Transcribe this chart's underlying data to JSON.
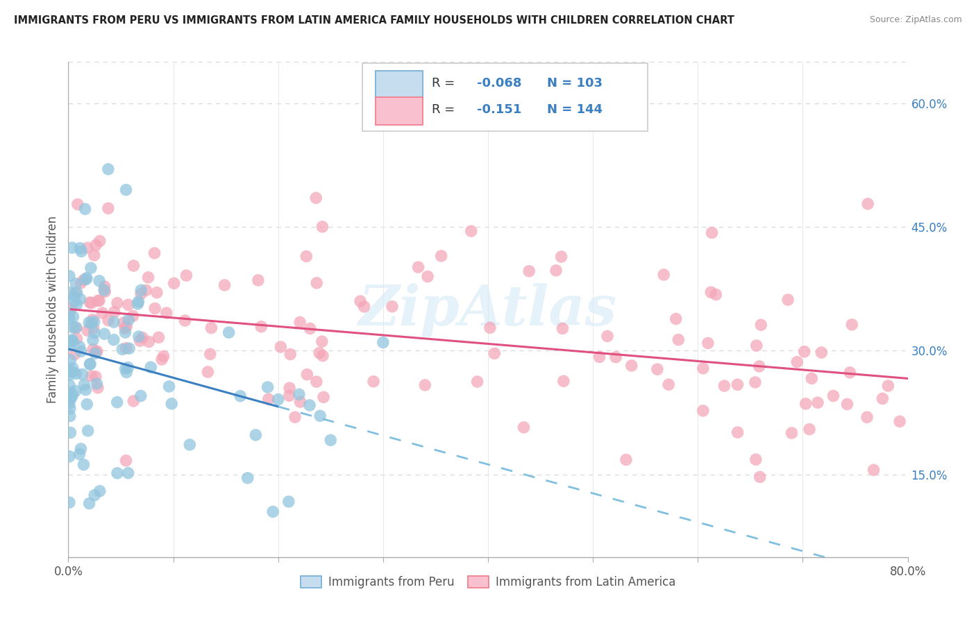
{
  "title": "IMMIGRANTS FROM PERU VS IMMIGRANTS FROM LATIN AMERICA FAMILY HOUSEHOLDS WITH CHILDREN CORRELATION CHART",
  "source": "Source: ZipAtlas.com",
  "ylabel": "Family Households with Children",
  "xlim": [
    0.0,
    0.8
  ],
  "ylim": [
    0.05,
    0.65
  ],
  "x_ticks": [
    0.0,
    0.1,
    0.2,
    0.3,
    0.4,
    0.5,
    0.6,
    0.7,
    0.8
  ],
  "x_tick_labels": [
    "0.0%",
    "",
    "",
    "",
    "",
    "",
    "",
    "",
    "80.0%"
  ],
  "y_ticks_right": [
    0.15,
    0.3,
    0.45,
    0.6
  ],
  "y_tick_labels_right": [
    "15.0%",
    "30.0%",
    "45.0%",
    "60.0%"
  ],
  "peru_R": "-0.068",
  "peru_N": "103",
  "latam_R": "-0.151",
  "latam_N": "144",
  "peru_color": "#92c5de",
  "latam_color": "#f4a7b9",
  "peru_line_solid_color": "#3a7fc1",
  "peru_line_dash_color": "#7fbfe0",
  "latam_line_color": "#e05080",
  "legend_text_color": "#3a7fc1",
  "watermark": "ZipAtlas",
  "background_color": "#ffffff",
  "grid_color": "#d8d8d8"
}
